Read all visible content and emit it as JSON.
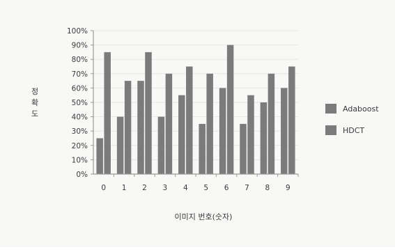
{
  "chart_data": {
    "type": "bar",
    "categories": [
      "0",
      "1",
      "2",
      "3",
      "4",
      "5",
      "6",
      "7",
      "8",
      "9"
    ],
    "series": [
      {
        "name": "Adaboost",
        "values": [
          25,
          40,
          65,
          40,
          55,
          35,
          60,
          35,
          50,
          60
        ]
      },
      {
        "name": "HDCT",
        "values": [
          85,
          65,
          85,
          70,
          75,
          70,
          90,
          55,
          70,
          75
        ]
      }
    ],
    "title": "",
    "xlabel": "이미지 번호(숫자)",
    "ylabel": "정확도",
    "ylim": [
      0,
      100
    ],
    "yticks": [
      "0%",
      "10%",
      "20%",
      "30%",
      "40%",
      "50%",
      "60%",
      "70%",
      "80%",
      "90%",
      "100%"
    ],
    "grid": true,
    "legend_position": "right",
    "colors": {
      "series": [
        "#7b7b7b",
        "#7b7b7b"
      ],
      "axis": "#9a9a9a",
      "grid": "#e6e6e6"
    }
  }
}
